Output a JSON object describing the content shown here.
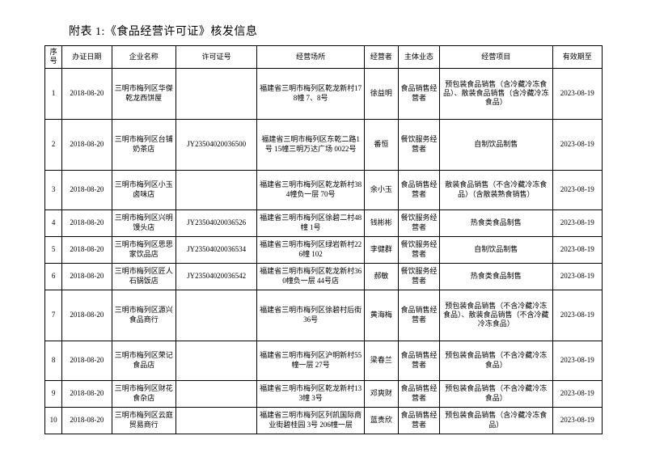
{
  "title": "附表 1:《食品经营许可证》核发信息",
  "columns": [
    "序号",
    "办证日期",
    "企业名称",
    "许可证号",
    "经营场所",
    "经营者",
    "主体业态",
    "经营项目",
    "有效期至"
  ],
  "rows": [
    {
      "seq": "1",
      "date": "2018-08-20",
      "corp": "三明市梅列区华傑乾龙西饼屋",
      "lic": "",
      "loc": "福建省三明市梅列区乾龙新村178幢 7、8号",
      "op": "徐益明",
      "biz": "食品销售经营者",
      "proj": "预包装食品销售（含冷藏冷冻食品）、散装食品销售（含冷藏冷冻食品）",
      "exp": "2023-08-19",
      "cls": "tall"
    },
    {
      "seq": "2",
      "date": "2018-08-20",
      "corp": "三明市梅列区台铺奶茶店",
      "lic": "JY23504020036500",
      "loc": "福建省三明市梅列区东乾二路1号 15幢三明万达广场 0022号",
      "op": "番恒",
      "biz": "餐饮服务经营者",
      "proj": "自制饮品制售",
      "exp": "2023-08-19",
      "cls": "tall"
    },
    {
      "seq": "3",
      "date": "2018-08-20",
      "corp": "三明市梅列区小玉卤味店",
      "lic": "",
      "loc": "福建省三明市梅列区乾龙新村384幢负一层 70号",
      "op": "余小玉",
      "biz": "食品销售经营者",
      "proj": "散装食品销售（不含冷藏冷冻食品）（含散装熟食销售）",
      "exp": "2023-08-19",
      "cls": "med"
    },
    {
      "seq": "4",
      "date": "2018-08-20",
      "corp": "三明市梅列区兴明馒头店",
      "lic": "JY23504020036526",
      "loc": "福建省三明市梅列区徐碧二村48幢 1号",
      "op": "钱彬彬",
      "biz": "餐饮服务经营者",
      "proj": "热食类食品制售",
      "exp": "2023-08-19",
      "cls": "sm"
    },
    {
      "seq": "5",
      "date": "2018-08-20",
      "corp": "三明市梅列区思思家饮品店",
      "lic": "JY23504020036534",
      "loc": "福建省三明市梅列区绿岩新村226幢 102",
      "op": "李健群",
      "biz": "餐饮服务经营者",
      "proj": "自制饮品制售",
      "exp": "2023-08-19",
      "cls": "sm"
    },
    {
      "seq": "6",
      "date": "2018-08-20",
      "corp": "三明市梅列区匠人石锅饭店",
      "lic": "JY23504020036542",
      "loc": "福建省三明市梅列区乾龙新村360幢负一层 44号店",
      "op": "郝敏",
      "biz": "餐饮服务经营者",
      "proj": "热食类食品制售",
      "exp": "2023-08-19",
      "cls": "sm"
    },
    {
      "seq": "7",
      "date": "2018-08-20",
      "corp": "三明市梅列区源兴食品商行",
      "lic": "",
      "loc": "福建省三明市梅列区徐碧村后街 36号",
      "op": "黄海梅",
      "biz": "食品销售经营者",
      "proj": "预包装食品销售（不含冷藏冷冻食品）、散装食品销售（不含冷藏冷冻食品）",
      "exp": "2023-08-19",
      "cls": "tall"
    },
    {
      "seq": "8",
      "date": "2018-08-20",
      "corp": "三明市梅列区荣记食品店",
      "lic": "",
      "loc": "福建省三明市梅列区沪明新村55幢一层 27号",
      "op": "梁春兰",
      "biz": "食品销售经营者",
      "proj": "预包装食品销售（不含冷藏冷冻食品）",
      "exp": "2023-08-19",
      "cls": "med"
    },
    {
      "seq": "9",
      "date": "2018-08-20",
      "corp": "三明市梅列区财花食杂店",
      "lic": "",
      "loc": "福建省三明市梅列区乾龙新村133幢 3号",
      "op": "邓爽财",
      "biz": "食品销售经营者",
      "proj": "预包装食品销售（不含冷藏冷冻食品）",
      "exp": "2023-08-19",
      "cls": "sm"
    },
    {
      "seq": "10",
      "date": "2018-08-20",
      "corp": "三明市梅列区云庭贸易商行",
      "lic": "",
      "loc": "福建省三明市梅列区列凯国际商业街碧桂园 3号 206幢一层",
      "op": "蓝贵欣",
      "biz": "食品销售经营者",
      "proj": "预包装食品销售（含冷藏冷冻食品）",
      "exp": "2023-08-19",
      "cls": "sm"
    }
  ]
}
